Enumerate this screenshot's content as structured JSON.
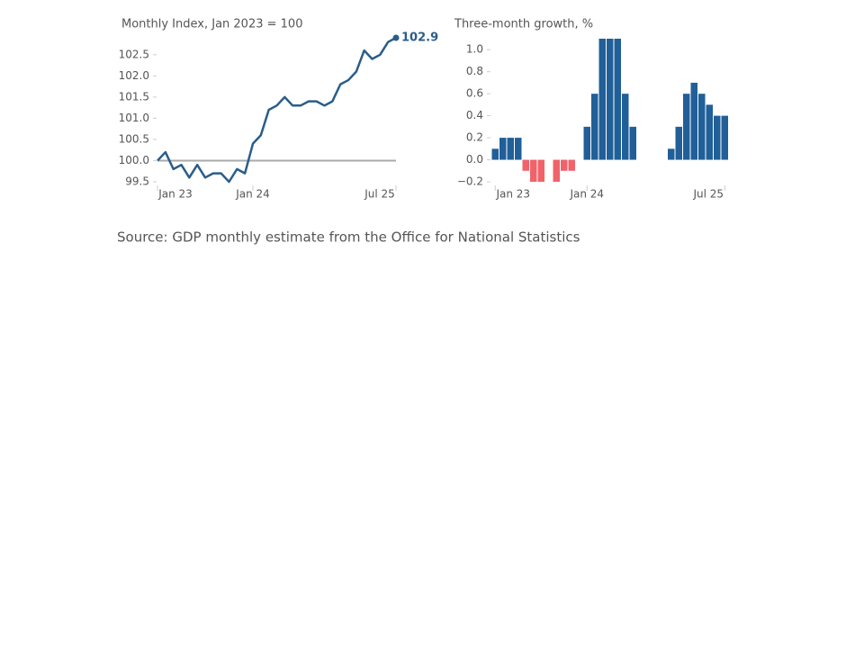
{
  "chart_data": [
    {
      "type": "line",
      "title": "Monthly Index, Jan 2023 = 100",
      "categories": [
        "Jan 23",
        null,
        null,
        null,
        null,
        null,
        null,
        null,
        null,
        null,
        null,
        null,
        "Jan 24",
        null,
        null,
        null,
        null,
        null,
        null,
        null,
        null,
        null,
        null,
        null,
        null,
        null,
        null,
        null,
        null,
        null,
        "Jul 25"
      ],
      "values": [
        100.0,
        100.2,
        99.8,
        99.9,
        99.6,
        99.9,
        99.6,
        99.7,
        99.7,
        99.5,
        99.8,
        99.7,
        100.4,
        100.6,
        101.2,
        101.3,
        101.5,
        101.3,
        101.3,
        101.4,
        101.4,
        101.3,
        101.4,
        101.8,
        101.9,
        102.1,
        102.6,
        102.4,
        102.5,
        102.8,
        102.9
      ],
      "color": "#2a5d8a",
      "reference_line": 100,
      "ylim": [
        99.5,
        102.9
      ],
      "yticks": [
        99.5,
        {
          "value": 100,
          "label": "100.0"
        },
        100.5,
        {
          "value": 101,
          "label": "101.0"
        },
        101.5,
        {
          "value": 102,
          "label": "102.0"
        },
        102.5
      ]
    },
    {
      "type": "bar",
      "title": "Three-month growth, %",
      "categories": [
        "Jan 23",
        null,
        null,
        null,
        null,
        null,
        null,
        null,
        null,
        null,
        null,
        null,
        "Jan 24",
        null,
        null,
        null,
        null,
        null,
        null,
        null,
        null,
        null,
        null,
        null,
        null,
        null,
        null,
        null,
        null,
        null,
        "Jul 25"
      ],
      "values": [
        0.1,
        0.2,
        0.2,
        0.2,
        -0.1,
        -0.2,
        -0.2,
        0,
        -0.2,
        -0.1,
        -0.1,
        0,
        0.3,
        0.6,
        1.1,
        1.1,
        1.1,
        0.6,
        0.3,
        0,
        0,
        0,
        0,
        0.1,
        0.3,
        0.6,
        0.7,
        0.6,
        0.5,
        0.4,
        0.4
      ],
      "color": "#215f98",
      "negative_color": "#f0636b",
      "ylim": [
        -0.2,
        1.1
      ],
      "yticks": [
        {
          "value": -0.2,
          "label": "−0.2"
        },
        {
          "value": 0,
          "label": "0.0"
        },
        0.2,
        0.4,
        0.6,
        0.8,
        {
          "value": 1,
          "label": "1.0"
        }
      ]
    }
  ],
  "source": "Source: GDP monthly estimate from the Office for National Statistics"
}
